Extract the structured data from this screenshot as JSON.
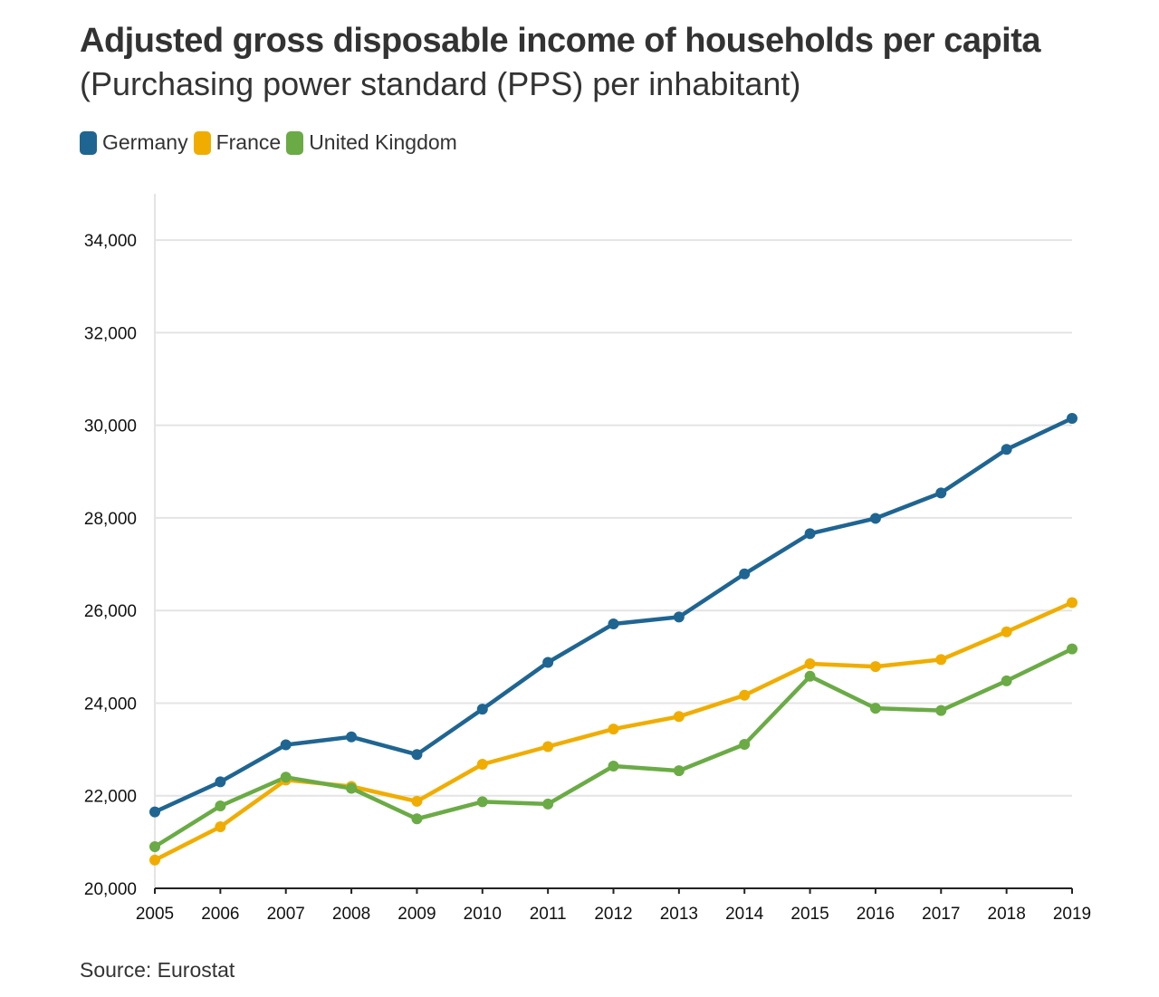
{
  "title": "Adjusted gross disposable income of households per capita",
  "subtitle": "(Purchasing power standard (PPS) per inhabitant)",
  "source": "Source: Eurostat",
  "chart_data": {
    "type": "line",
    "title": "Adjusted gross disposable income of households per capita",
    "subtitle": "(Purchasing power standard (PPS) per inhabitant)",
    "xlabel": "",
    "ylabel": "",
    "x": [
      "2005",
      "2006",
      "2007",
      "2008",
      "2009",
      "2010",
      "2011",
      "2012",
      "2013",
      "2014",
      "2015",
      "2016",
      "2017",
      "2018",
      "2019"
    ],
    "ylim": [
      20000,
      35000
    ],
    "yticks": [
      20000,
      22000,
      24000,
      26000,
      28000,
      30000,
      32000,
      34000
    ],
    "ytick_labels": [
      "20,000",
      "22,000",
      "24,000",
      "26,000",
      "28,000",
      "30,000",
      "32,000",
      "34,000"
    ],
    "grid": true,
    "legend_position": "top-left",
    "series": [
      {
        "name": "Germany",
        "color": "#1f6592",
        "values": [
          21650,
          22300,
          23100,
          23270,
          22890,
          23870,
          24880,
          25710,
          25860,
          26790,
          27660,
          27990,
          28540,
          29480,
          30150
        ]
      },
      {
        "name": "France",
        "color": "#f0ad00",
        "values": [
          20610,
          21330,
          22340,
          22200,
          21880,
          22680,
          23060,
          23440,
          23710,
          24170,
          24850,
          24790,
          24940,
          25540,
          26170
        ]
      },
      {
        "name": "United Kingdom",
        "color": "#6aab45",
        "values": [
          20900,
          21780,
          22400,
          22160,
          21500,
          21870,
          21820,
          22640,
          22540,
          23110,
          24580,
          23890,
          23840,
          24480,
          25170
        ]
      }
    ]
  }
}
